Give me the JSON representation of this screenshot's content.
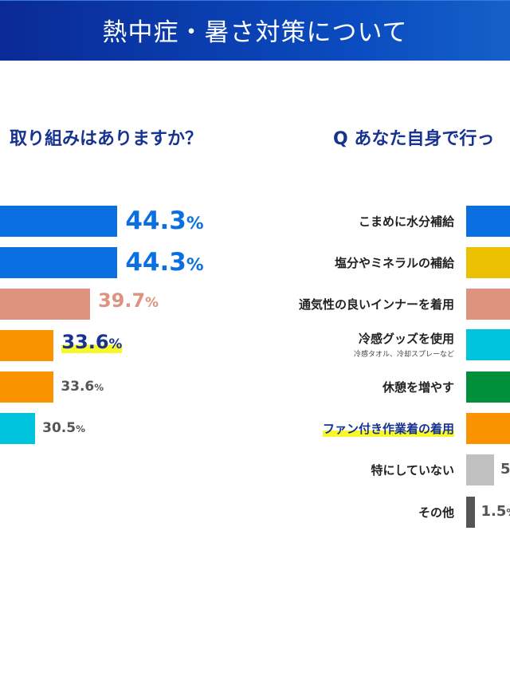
{
  "header": {
    "title": "熱中症・暑さ対策について"
  },
  "left_question": "取り組みはありますか？",
  "right_question": "Q あなた自身で行っ",
  "chart_data": [
    {
      "type": "bar",
      "orientation": "horizontal",
      "title": "取り組みはありますか？",
      "values": [
        44.3,
        44.3,
        39.7,
        33.6,
        33.6,
        30.5
      ],
      "value_labels": [
        "44.3",
        "44.3",
        "39.7",
        "33.6",
        "33.6",
        "30.5"
      ],
      "colors": [
        "#0a6fe0",
        "#0a6fe0",
        "#de9380",
        "#fb9300",
        "#fb9300",
        "#00c3dc"
      ],
      "label_colors": [
        "#0a6fe0",
        "#0a6fe0",
        "#de9380",
        "#17338f",
        "#555555",
        "#555555"
      ],
      "highlight": [
        false,
        false,
        false,
        true,
        false,
        false
      ],
      "unit": "%"
    },
    {
      "type": "bar",
      "orientation": "horizontal",
      "title": "Q あなた自身で行っ",
      "categories": [
        "こまめに水分補給",
        "塩分やミネラルの補給",
        "通気性の良いインナーを着用",
        "冷感グッズを使用",
        "休憩を増やす",
        "ファン付き作業着の着用",
        "特にしていない",
        "その他"
      ],
      "subcategories": [
        "",
        "",
        "",
        "冷感タオル、冷却スプレーなど",
        "",
        "",
        "",
        ""
      ],
      "values": [
        null,
        null,
        null,
        null,
        null,
        null,
        5,
        1.5
      ],
      "value_labels": [
        "",
        "",
        "",
        "",
        "",
        "",
        "5",
        "1.5"
      ],
      "colors": [
        "#0a6fe0",
        "#eac000",
        "#de9380",
        "#00c3dc",
        "#008f3a",
        "#fb9300",
        "#c0c0c0",
        "#555555"
      ],
      "highlight": [
        false,
        false,
        false,
        false,
        false,
        true,
        false,
        false
      ],
      "unit": "%"
    }
  ]
}
